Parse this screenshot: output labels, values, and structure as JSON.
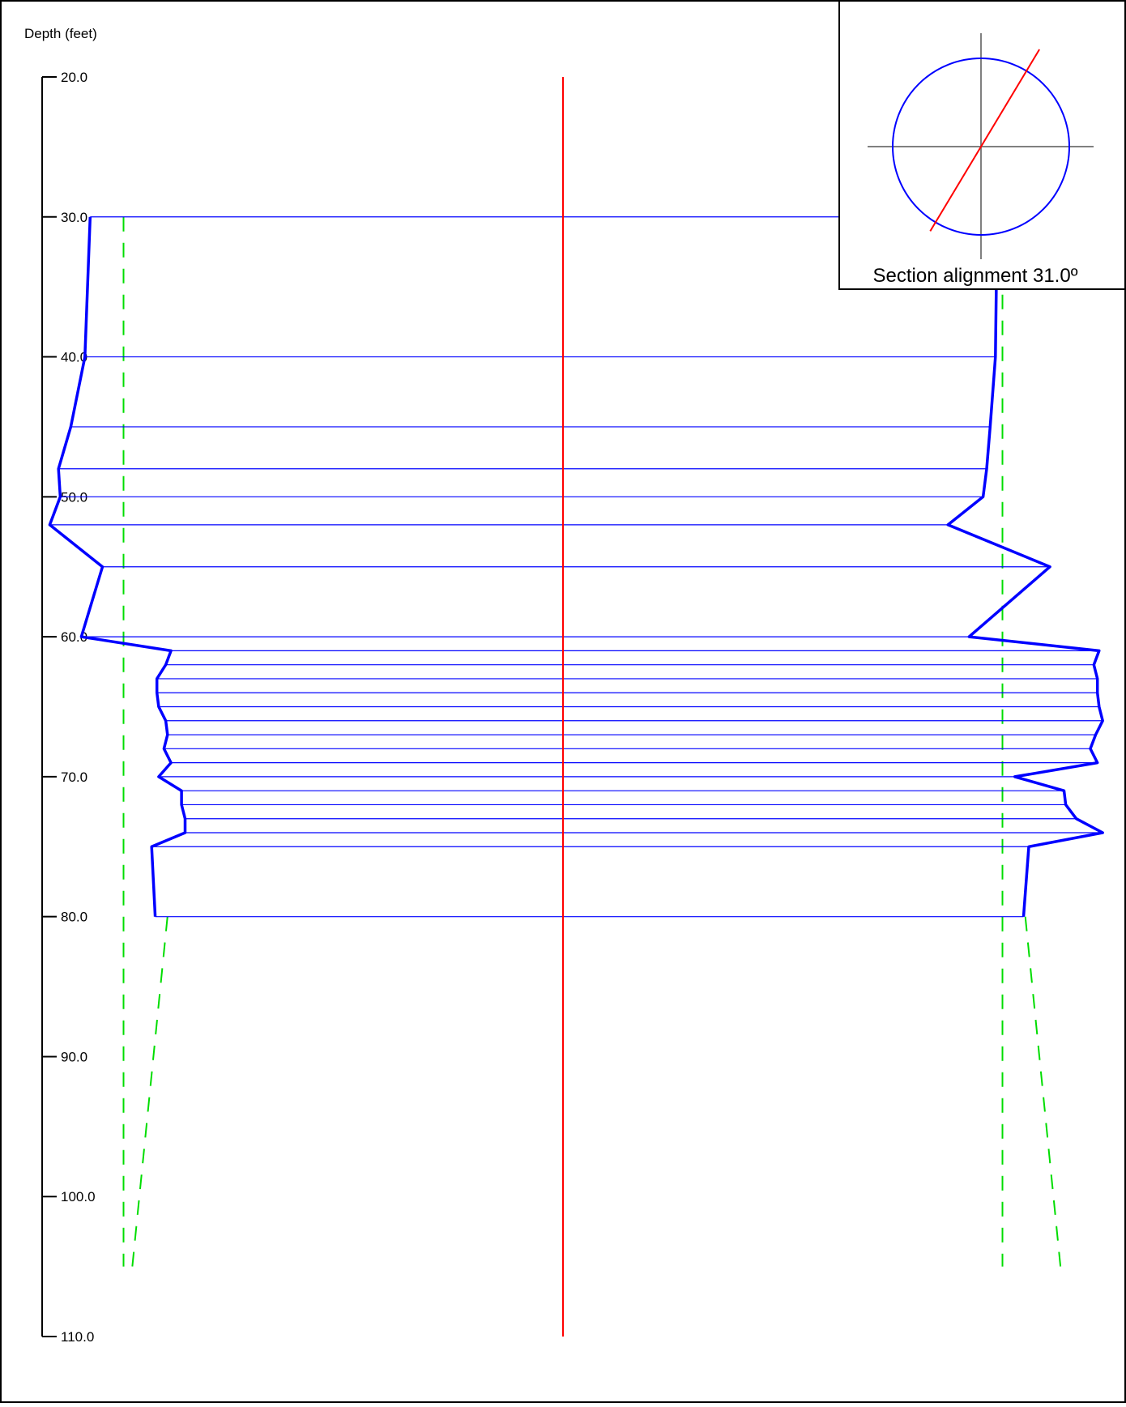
{
  "axis": {
    "title": "Depth (feet)",
    "ticks": [
      20,
      30,
      40,
      50,
      60,
      70,
      80,
      90,
      100,
      110
    ],
    "tick_labels": [
      "20.0",
      "30.0",
      "40.0",
      "50.0",
      "60.0",
      "70.0",
      "80.0",
      "90.0",
      "100.0",
      "110.0"
    ],
    "ylim": [
      20,
      110
    ]
  },
  "inset": {
    "caption": "Section alignment 31.0º",
    "alignment_deg": 31.0
  },
  "colors": {
    "profile": "#0000ff",
    "design": "#00dd00",
    "centerline": "#ff0000",
    "crosshair": "#808080",
    "text": "#000000"
  },
  "chart_data": {
    "type": "line",
    "title": "",
    "xlabel": "",
    "ylabel": "Depth (feet)",
    "ylim": [
      20,
      110
    ],
    "grid": false,
    "centerline": {
      "depth_from": 20,
      "depth_to": 110
    },
    "series": [
      {
        "role": "profile",
        "depth": [
          30,
          40,
          45,
          48,
          50,
          52,
          55,
          60,
          61,
          62,
          63,
          64,
          65,
          66,
          67,
          68,
          69,
          70,
          71,
          72,
          73,
          74,
          75,
          80
        ],
        "left": [
          -2.69,
          -2.72,
          -2.8,
          -2.87,
          -2.86,
          -2.92,
          -2.62,
          -2.74,
          -2.23,
          -2.26,
          -2.31,
          -2.31,
          -2.3,
          -2.26,
          -2.25,
          -2.27,
          -2.23,
          -2.3,
          -2.17,
          -2.17,
          -2.15,
          -2.15,
          -2.34,
          -2.32
        ],
        "right": [
          2.47,
          2.46,
          2.43,
          2.41,
          2.39,
          2.19,
          2.77,
          2.31,
          3.05,
          3.02,
          3.04,
          3.04,
          3.05,
          3.07,
          3.03,
          3.0,
          3.04,
          2.57,
          2.85,
          2.86,
          2.92,
          3.07,
          2.65,
          2.62
        ]
      },
      {
        "role": "design",
        "segments": [
          {
            "depth": [
              30,
              105
            ],
            "left": [
              -2.5,
              -2.5
            ],
            "right": [
              2.5,
              2.5
            ]
          },
          {
            "depth": [
              80,
              105
            ],
            "left": [
              -2.25,
              -2.45
            ],
            "right": [
              2.63,
              2.83
            ]
          }
        ]
      }
    ]
  }
}
